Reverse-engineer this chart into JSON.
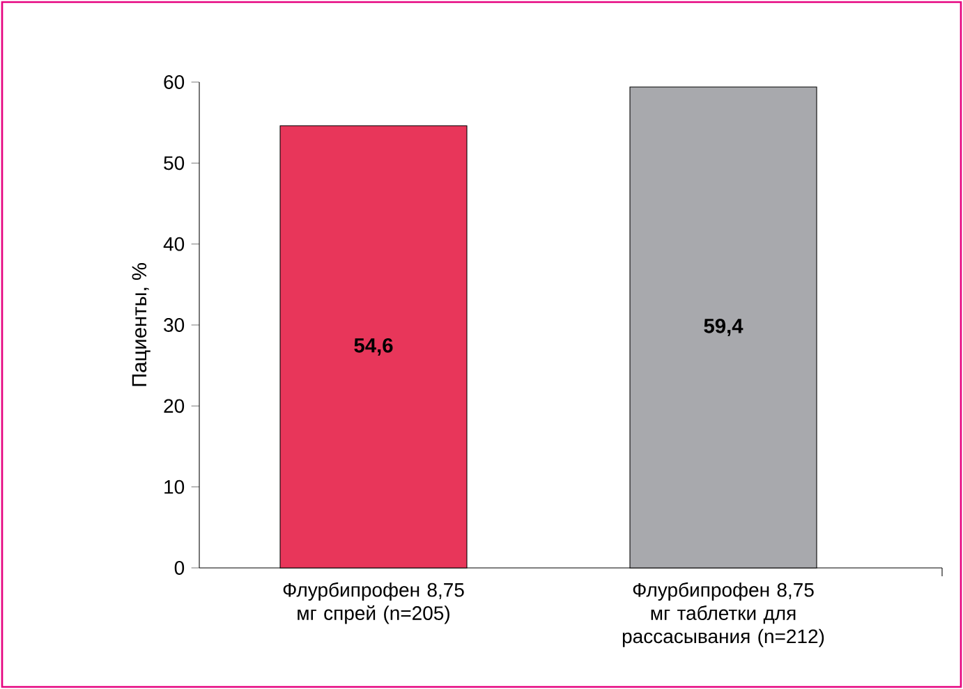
{
  "chart_data": {
    "type": "bar",
    "ylabel": "Пациенты, %",
    "categories": [
      "Флурбипрофен 8,75 мг спрей (n=205)",
      "Флурбипрофен 8,75 мг таблетки для рассасывания (n=212)"
    ],
    "values": [
      54.6,
      59.4
    ],
    "colors": [
      "#e8365a",
      "#a8a9ad"
    ],
    "value_labels": [
      "54,6",
      "59,4"
    ],
    "ylim": [
      0,
      60
    ],
    "yticks": [
      0,
      10,
      20,
      30,
      40,
      50,
      60
    ]
  }
}
